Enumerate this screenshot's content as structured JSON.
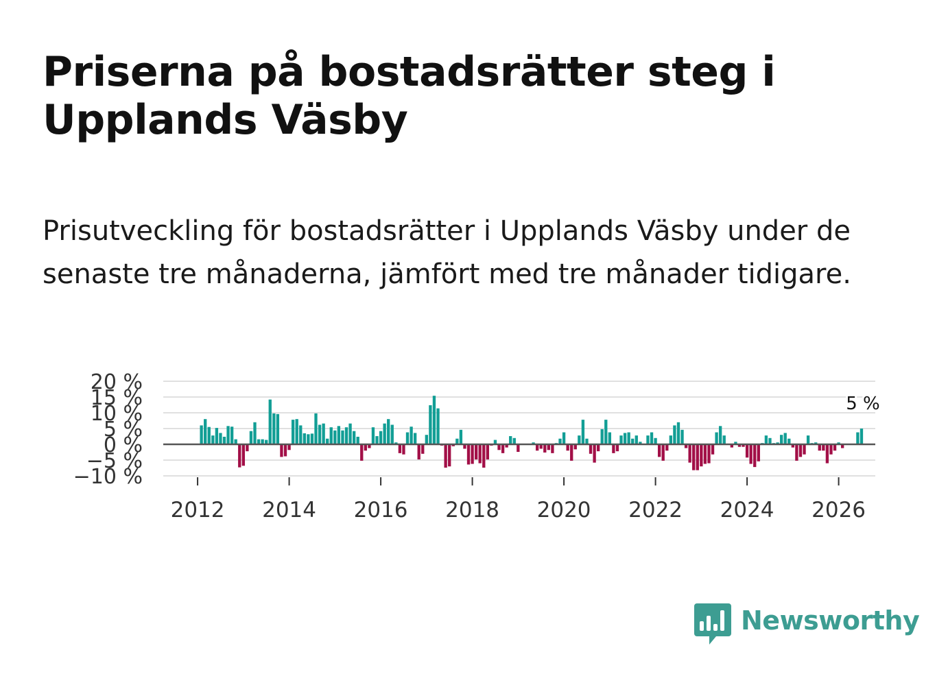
{
  "title": "Priserna på bostadsrätter steg i Upplands Väsby",
  "subtitle": "Prisutveckling för bostadsrätter i Upplands Väsby under de senaste tre månaderna, jämfört med tre månader tidigare.",
  "logo": {
    "name": "Newsworthy",
    "icon": "newsworthy-chart-bubble-icon",
    "color": "#3d9d92"
  },
  "colors": {
    "positive": "#129e95",
    "negative": "#a20f47",
    "zero_line": "#555555",
    "grid": "#e0e0e0",
    "axis_text": "#333333"
  },
  "chart_data": {
    "type": "bar",
    "title": "",
    "xlabel": "",
    "ylabel": "",
    "ylim": [
      -10,
      20
    ],
    "xlim": [
      2011.25,
      2026.8
    ],
    "y_ticks": [
      -10,
      -5,
      0,
      5,
      10,
      15,
      20
    ],
    "y_tick_labels": [
      "−10 %",
      "−5 %",
      "0 %",
      "5 %",
      "10 %",
      "15 %",
      "20 %"
    ],
    "x_ticks": [
      2012,
      2014,
      2016,
      2018,
      2020,
      2022,
      2024,
      2026
    ],
    "x_tick_labels": [
      "2012",
      "2014",
      "2016",
      "2018",
      "2020",
      "2022",
      "2024",
      "2026"
    ],
    "start_year": 2012,
    "start_month": 2,
    "last_label": "5 %",
    "values": [
      6,
      8,
      5.5,
      2.8,
      5.2,
      3.6,
      2.4,
      5.8,
      5.6,
      1.6,
      -7.3,
      -6.8,
      -2.2,
      4.2,
      7,
      1.6,
      1.6,
      1.4,
      14.2,
      9.8,
      9.6,
      -4,
      -3.8,
      -1.8,
      7.8,
      8,
      6,
      3.5,
      3.2,
      3.4,
      9.8,
      6.2,
      6.6,
      1.8,
      5.4,
      4.4,
      5.8,
      4.4,
      5.4,
      6.6,
      4.2,
      2.4,
      -5.2,
      -2,
      -1.2,
      5.4,
      2.6,
      4.2,
      6.6,
      8,
      6.2,
      0.6,
      -2.8,
      -3.2,
      3.8,
      5.6,
      3.6,
      -4.8,
      -3,
      3,
      12.4,
      15.4,
      11.4,
      -0.4,
      -7.4,
      -7,
      -0.6,
      1.8,
      4.6,
      -1.4,
      -6.4,
      -6.2,
      -4.8,
      -6,
      -7.4,
      -4.8,
      -0.4,
      1.4,
      -1.8,
      -2.8,
      -1,
      2.6,
      2,
      -2.4,
      -0.2,
      0.2,
      0.2,
      0.6,
      -2,
      -1.4,
      -2.6,
      -1.8,
      -2.8,
      0.4,
      1.8,
      3.8,
      -2,
      -5.2,
      -1.6,
      2.8,
      7.8,
      1.8,
      -3,
      -5.8,
      -2.2,
      4.8,
      7.8,
      3.8,
      -2.8,
      -2.2,
      2.8,
      3.6,
      3.8,
      1.8,
      2.8,
      0.8,
      0.2,
      2.8,
      3.8,
      2,
      -4,
      -5.2,
      -2,
      2.8,
      6,
      7,
      4.6,
      -1.2,
      -5.8,
      -8.2,
      -8.2,
      -7,
      -6.2,
      -6,
      -3.2,
      3.8,
      5.8,
      2.8,
      0.2,
      -1,
      0.8,
      -0.8,
      -0.8,
      -4.2,
      -6.2,
      -7.2,
      -5.4,
      0.4,
      2.8,
      2,
      0.4,
      0.6,
      3,
      3.6,
      1.8,
      -1,
      -5.2,
      -4,
      -3.2,
      2.8,
      0.4,
      0.6,
      -2,
      -2,
      -6,
      -3.2,
      -2,
      0.6,
      -1.2,
      0,
      0.2,
      0.2,
      3.8,
      5
    ]
  }
}
